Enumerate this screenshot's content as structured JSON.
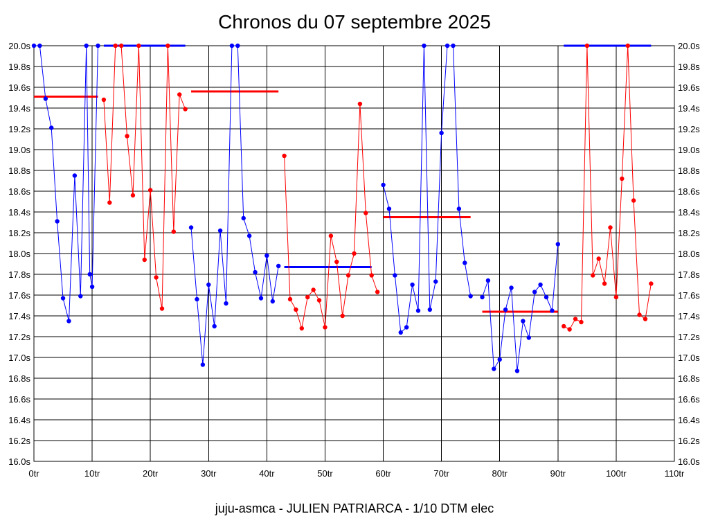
{
  "chart_data": {
    "type": "line",
    "title": "Chronos du 07 septembre 2025",
    "caption": "juju-asmca - JULIEN PATRIARCA - 1/10 DTM elec",
    "xlim": [
      0,
      110
    ],
    "ylim": [
      16.0,
      20.0
    ],
    "x_ticks": [
      0,
      10,
      20,
      30,
      40,
      50,
      60,
      70,
      80,
      90,
      100,
      110
    ],
    "x_tick_labels": [
      "0tr",
      "10tr",
      "20tr",
      "30tr",
      "40tr",
      "50tr",
      "60tr",
      "70tr",
      "80tr",
      "90tr",
      "100tr",
      "110tr"
    ],
    "y_ticks": [
      16.0,
      16.2,
      16.4,
      16.6,
      16.8,
      17.0,
      17.2,
      17.4,
      17.6,
      17.8,
      18.0,
      18.2,
      18.4,
      18.6,
      18.8,
      19.0,
      19.2,
      19.4,
      19.6,
      19.8,
      20.0
    ],
    "y_tick_labels": [
      "16.0s",
      "16.2s",
      "16.4s",
      "16.6s",
      "16.8s",
      "17.0s",
      "17.2s",
      "17.4s",
      "17.6s",
      "17.8s",
      "18.0s",
      "18.2s",
      "18.4s",
      "18.6s",
      "18.8s",
      "19.0s",
      "19.2s",
      "19.4s",
      "19.6s",
      "19.8s",
      "20.0s"
    ],
    "grid": true,
    "colors": {
      "blue": "#0000ff",
      "red": "#ff0000",
      "grid": "#000000"
    },
    "series": [
      {
        "color": "#0000ff",
        "points": [
          [
            0,
            20.0
          ],
          [
            1,
            20.0
          ],
          [
            2,
            19.49
          ],
          [
            3,
            19.21
          ],
          [
            4,
            18.31
          ],
          [
            5,
            17.57
          ],
          [
            6,
            17.35
          ],
          [
            7,
            18.75
          ],
          [
            8,
            17.59
          ],
          [
            9,
            20.0
          ],
          [
            9.6,
            17.8
          ],
          [
            10,
            17.68
          ],
          [
            11,
            20.0
          ]
        ]
      },
      {
        "color": "#ff0000",
        "points": [
          [
            12,
            19.48
          ],
          [
            13,
            18.49
          ],
          [
            14,
            20.0
          ],
          [
            15,
            20.0
          ],
          [
            16,
            19.13
          ],
          [
            17,
            18.56
          ],
          [
            18,
            20.0
          ],
          [
            19,
            17.94
          ],
          [
            20,
            18.61
          ],
          [
            21,
            17.77
          ],
          [
            22,
            17.47
          ],
          [
            23,
            20.0
          ],
          [
            24,
            18.21
          ],
          [
            25,
            19.53
          ],
          [
            26,
            19.39
          ]
        ]
      },
      {
        "color": "#0000ff",
        "points": [
          [
            27,
            18.25
          ],
          [
            28,
            17.56
          ],
          [
            29,
            16.93
          ],
          [
            30,
            17.7
          ],
          [
            31,
            17.3
          ],
          [
            32,
            18.22
          ],
          [
            33,
            17.52
          ],
          [
            34,
            20.0
          ],
          [
            35,
            20.0
          ],
          [
            36,
            18.34
          ],
          [
            37,
            18.17
          ],
          [
            38,
            17.82
          ],
          [
            39,
            17.57
          ],
          [
            40,
            17.98
          ],
          [
            41,
            17.54
          ],
          [
            42,
            17.88
          ]
        ]
      },
      {
        "color": "#ff0000",
        "points": [
          [
            43,
            18.94
          ],
          [
            44,
            17.56
          ],
          [
            45,
            17.46
          ],
          [
            46,
            17.28
          ],
          [
            47,
            17.58
          ],
          [
            48,
            17.65
          ],
          [
            49,
            17.55
          ],
          [
            50,
            17.29
          ],
          [
            51,
            18.17
          ],
          [
            52,
            17.92
          ],
          [
            53,
            17.4
          ],
          [
            54,
            17.79
          ],
          [
            55,
            18.0
          ],
          [
            56,
            19.44
          ],
          [
            57,
            18.39
          ],
          [
            58,
            17.79
          ],
          [
            59,
            17.63
          ]
        ]
      },
      {
        "color": "#0000ff",
        "points": [
          [
            60,
            18.66
          ],
          [
            61,
            18.43
          ],
          [
            62,
            17.79
          ],
          [
            63,
            17.24
          ],
          [
            64,
            17.29
          ],
          [
            65,
            17.7
          ],
          [
            66,
            17.45
          ],
          [
            67,
            20.0
          ],
          [
            68,
            17.46
          ],
          [
            69,
            17.73
          ],
          [
            70,
            19.16
          ],
          [
            71,
            20.0
          ],
          [
            72,
            20.0
          ],
          [
            73,
            18.43
          ],
          [
            74,
            17.91
          ],
          [
            75,
            17.59
          ]
        ]
      },
      {
        "color": "#0000ff",
        "points": [
          [
            77,
            17.58
          ],
          [
            78,
            17.74
          ],
          [
            79,
            16.89
          ],
          [
            80,
            16.98
          ],
          [
            81,
            17.46
          ],
          [
            82,
            17.67
          ],
          [
            83,
            16.87
          ],
          [
            84,
            17.35
          ],
          [
            85,
            17.19
          ],
          [
            86,
            17.63
          ],
          [
            87,
            17.7
          ],
          [
            88,
            17.58
          ],
          [
            89,
            17.45
          ],
          [
            90,
            18.09
          ]
        ]
      },
      {
        "color": "#ff0000",
        "points": [
          [
            91,
            17.3
          ],
          [
            92,
            17.27
          ],
          [
            93,
            17.37
          ],
          [
            94,
            17.34
          ],
          [
            95,
            20.0
          ],
          [
            96,
            17.79
          ],
          [
            97,
            17.95
          ],
          [
            98,
            17.71
          ],
          [
            99,
            18.25
          ],
          [
            100,
            17.58
          ],
          [
            101,
            18.72
          ],
          [
            102,
            20.0
          ],
          [
            103,
            18.51
          ],
          [
            104,
            17.41
          ],
          [
            105,
            17.37
          ],
          [
            106,
            17.71
          ]
        ]
      }
    ],
    "averages": [
      {
        "color": "#ff0000",
        "x": [
          0,
          11
        ],
        "y": 19.51
      },
      {
        "color": "#0000ff",
        "x": [
          12,
          26
        ],
        "y": 20.0
      },
      {
        "color": "#ff0000",
        "x": [
          27,
          42
        ],
        "y": 19.56
      },
      {
        "color": "#0000ff",
        "x": [
          43,
          58
        ],
        "y": 17.87
      },
      {
        "color": "#ff0000",
        "x": [
          60,
          75
        ],
        "y": 18.35
      },
      {
        "color": "#ff0000",
        "x": [
          77,
          90
        ],
        "y": 17.44
      },
      {
        "color": "#0000ff",
        "x": [
          91,
          106
        ],
        "y": 20.0
      }
    ]
  }
}
